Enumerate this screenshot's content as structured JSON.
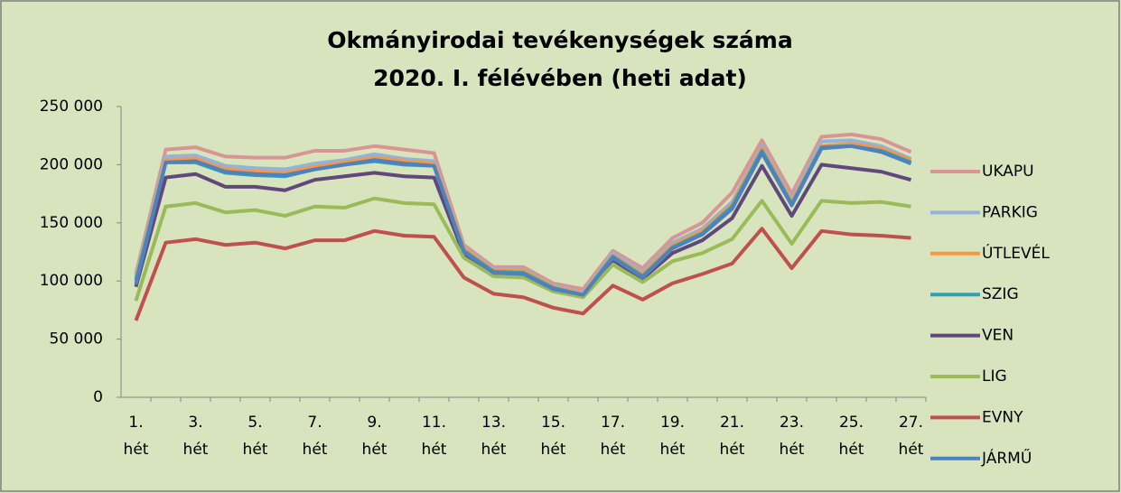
{
  "chart_data": {
    "type": "line",
    "title": [
      "Okmányirodai tevékenységek száma",
      "2020. I. félévében (heti adat)"
    ],
    "categories": [
      "1. hét",
      null,
      "3. hét",
      null,
      "5. hét",
      null,
      "7. hét",
      null,
      "9. hét",
      null,
      "11. hét",
      null,
      "13. hét",
      null,
      "15. hét",
      null,
      "17. hét",
      null,
      "19. hét",
      null,
      "21. hét",
      null,
      "23. hét",
      null,
      "25. hét",
      null,
      "27. hét"
    ],
    "ylim": [
      0,
      250000
    ],
    "yticks": [
      {
        "value": 0,
        "label": "0"
      },
      {
        "value": 50000,
        "label": "50 000"
      },
      {
        "value": 100000,
        "label": "100 000"
      },
      {
        "value": 150000,
        "label": "150 000"
      },
      {
        "value": 200000,
        "label": "200 000"
      },
      {
        "value": 250000,
        "label": "250 000"
      }
    ],
    "legend": "right",
    "series": [
      {
        "name": "UKAPU",
        "color": "#d99594",
        "values": [
          106000,
          213000,
          215000,
          207000,
          206000,
          206000,
          212000,
          212000,
          216000,
          213000,
          210000,
          131000,
          112000,
          112000,
          98000,
          93000,
          126000,
          111000,
          137000,
          150000,
          176000,
          221000,
          175000,
          224000,
          226000,
          222000,
          211000
        ]
      },
      {
        "name": "PARKIG",
        "color": "#95b3d7",
        "values": [
          104000,
          207000,
          208000,
          199000,
          197000,
          196000,
          201000,
          204000,
          209000,
          205000,
          203000,
          129000,
          110000,
          110000,
          96000,
          90000,
          124000,
          108000,
          133000,
          145000,
          168000,
          216000,
          170000,
          220000,
          221000,
          216000,
          205000
        ]
      },
      {
        "name": "ÚTLEVÉL",
        "color": "#f79646",
        "values": [
          102000,
          204000,
          205000,
          196000,
          194000,
          193000,
          198000,
          202000,
          206000,
          203000,
          201000,
          128000,
          109000,
          109000,
          95000,
          89000,
          122000,
          106000,
          131000,
          143000,
          166000,
          214000,
          168000,
          216000,
          218000,
          214000,
          204000
        ]
      },
      {
        "name": "SZIG",
        "color": "#31a0b5",
        "values": [
          100000,
          202000,
          202000,
          193000,
          191000,
          190000,
          196000,
          200000,
          203000,
          200000,
          199000,
          126000,
          108000,
          107000,
          94000,
          88000,
          121000,
          104000,
          129000,
          141000,
          164000,
          212000,
          166000,
          215000,
          216000,
          212000,
          202000
        ]
      },
      {
        "name": "VEN",
        "color": "#60497a",
        "values": [
          95000,
          189000,
          192000,
          181000,
          181000,
          178000,
          187000,
          190000,
          193000,
          190000,
          189000,
          123000,
          106000,
          105000,
          92000,
          87000,
          118000,
          102000,
          124000,
          135000,
          154000,
          199000,
          156000,
          200000,
          197000,
          194000,
          187000
        ]
      },
      {
        "name": "LIG",
        "color": "#9bbb59",
        "values": [
          83000,
          164000,
          167000,
          159000,
          161000,
          156000,
          164000,
          163000,
          171000,
          167000,
          166000,
          120000,
          104000,
          103000,
          91000,
          86000,
          114000,
          99000,
          117000,
          124000,
          136000,
          169000,
          132000,
          169000,
          167000,
          168000,
          164000
        ]
      },
      {
        "name": "EVNY",
        "color": "#c0504d",
        "values": [
          66000,
          133000,
          136000,
          131000,
          133000,
          128000,
          135000,
          135000,
          143000,
          139000,
          138000,
          103000,
          89000,
          86000,
          77000,
          72000,
          96000,
          84000,
          98000,
          106000,
          115000,
          145000,
          111000,
          143000,
          140000,
          139000,
          137000
        ]
      },
      {
        "name": "JÁRMŰ",
        "color": "#4f81bd",
        "values": [
          97000,
          202000,
          203000,
          194000,
          192000,
          191000,
          196000,
          200000,
          204000,
          201000,
          199000,
          125000,
          107000,
          106000,
          93000,
          88000,
          120000,
          103000,
          128000,
          140000,
          162000,
          210000,
          165000,
          214000,
          216000,
          211000,
          201000
        ]
      }
    ]
  }
}
